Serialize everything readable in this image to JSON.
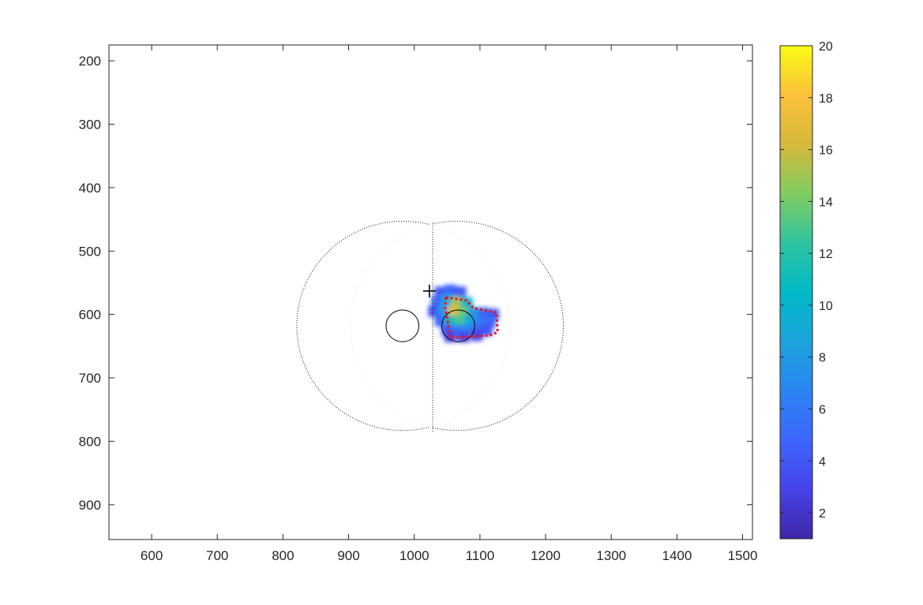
{
  "chart_data": {
    "type": "heatmap",
    "title": "",
    "xlabel": "",
    "ylabel": "",
    "xlim": [
      535,
      1515
    ],
    "ylim": [
      955,
      175
    ],
    "y_reversed": true,
    "grid": false,
    "x_ticks": [
      600,
      700,
      800,
      900,
      1000,
      1100,
      1200,
      1300,
      1400,
      1500
    ],
    "y_ticks": [
      200,
      300,
      400,
      500,
      600,
      700,
      800,
      900
    ],
    "colorbar": {
      "colormap": "parula",
      "range": [
        1,
        20
      ],
      "ticks": [
        2,
        4,
        6,
        8,
        10,
        12,
        14,
        16,
        18,
        20
      ],
      "placement": "right"
    },
    "outline_left_lobe": {
      "center": [
        983,
        618
      ],
      "radii": [
        162,
        165
      ],
      "style": "dotted"
    },
    "outline_right_lobe": {
      "center": [
        1065,
        618
      ],
      "radii": [
        162,
        165
      ],
      "style": "dotted"
    },
    "midline": {
      "x": 1028,
      "y_range": [
        455,
        785
      ],
      "style": "dotted"
    },
    "circles": [
      {
        "center": [
          982,
          618
        ],
        "r": 25
      },
      {
        "center": [
          1067,
          618
        ],
        "r": 25
      }
    ],
    "plus_marker": {
      "x": 1023,
      "y": 563
    },
    "heat_points": [
      {
        "x": 1040,
        "y": 565,
        "v": 4
      },
      {
        "x": 1055,
        "y": 562,
        "v": 5
      },
      {
        "x": 1070,
        "y": 565,
        "v": 4
      },
      {
        "x": 1035,
        "y": 580,
        "v": 5
      },
      {
        "x": 1050,
        "y": 578,
        "v": 9
      },
      {
        "x": 1065,
        "y": 580,
        "v": 15
      },
      {
        "x": 1080,
        "y": 582,
        "v": 10
      },
      {
        "x": 1030,
        "y": 595,
        "v": 4
      },
      {
        "x": 1045,
        "y": 595,
        "v": 8
      },
      {
        "x": 1060,
        "y": 595,
        "v": 17
      },
      {
        "x": 1075,
        "y": 597,
        "v": 14
      },
      {
        "x": 1090,
        "y": 598,
        "v": 8
      },
      {
        "x": 1105,
        "y": 598,
        "v": 5
      },
      {
        "x": 1120,
        "y": 600,
        "v": 4
      },
      {
        "x": 1040,
        "y": 610,
        "v": 5
      },
      {
        "x": 1055,
        "y": 610,
        "v": 11
      },
      {
        "x": 1070,
        "y": 610,
        "v": 13
      },
      {
        "x": 1085,
        "y": 610,
        "v": 9
      },
      {
        "x": 1100,
        "y": 612,
        "v": 6
      },
      {
        "x": 1115,
        "y": 612,
        "v": 5
      },
      {
        "x": 1050,
        "y": 625,
        "v": 4
      },
      {
        "x": 1065,
        "y": 625,
        "v": 6
      },
      {
        "x": 1080,
        "y": 625,
        "v": 7
      },
      {
        "x": 1095,
        "y": 625,
        "v": 5
      },
      {
        "x": 1110,
        "y": 625,
        "v": 4
      },
      {
        "x": 1055,
        "y": 635,
        "v": 3
      },
      {
        "x": 1075,
        "y": 635,
        "v": 3
      },
      {
        "x": 1095,
        "y": 633,
        "v": 3
      }
    ],
    "highlight_region": {
      "style": "dashed",
      "color": "#e8141f",
      "points": [
        [
          1048,
          573
        ],
        [
          1080,
          578
        ],
        [
          1090,
          590
        ],
        [
          1125,
          597
        ],
        [
          1127,
          628
        ],
        [
          1115,
          633
        ],
        [
          1055,
          637
        ],
        [
          1050,
          605
        ],
        [
          1047,
          590
        ]
      ]
    }
  }
}
